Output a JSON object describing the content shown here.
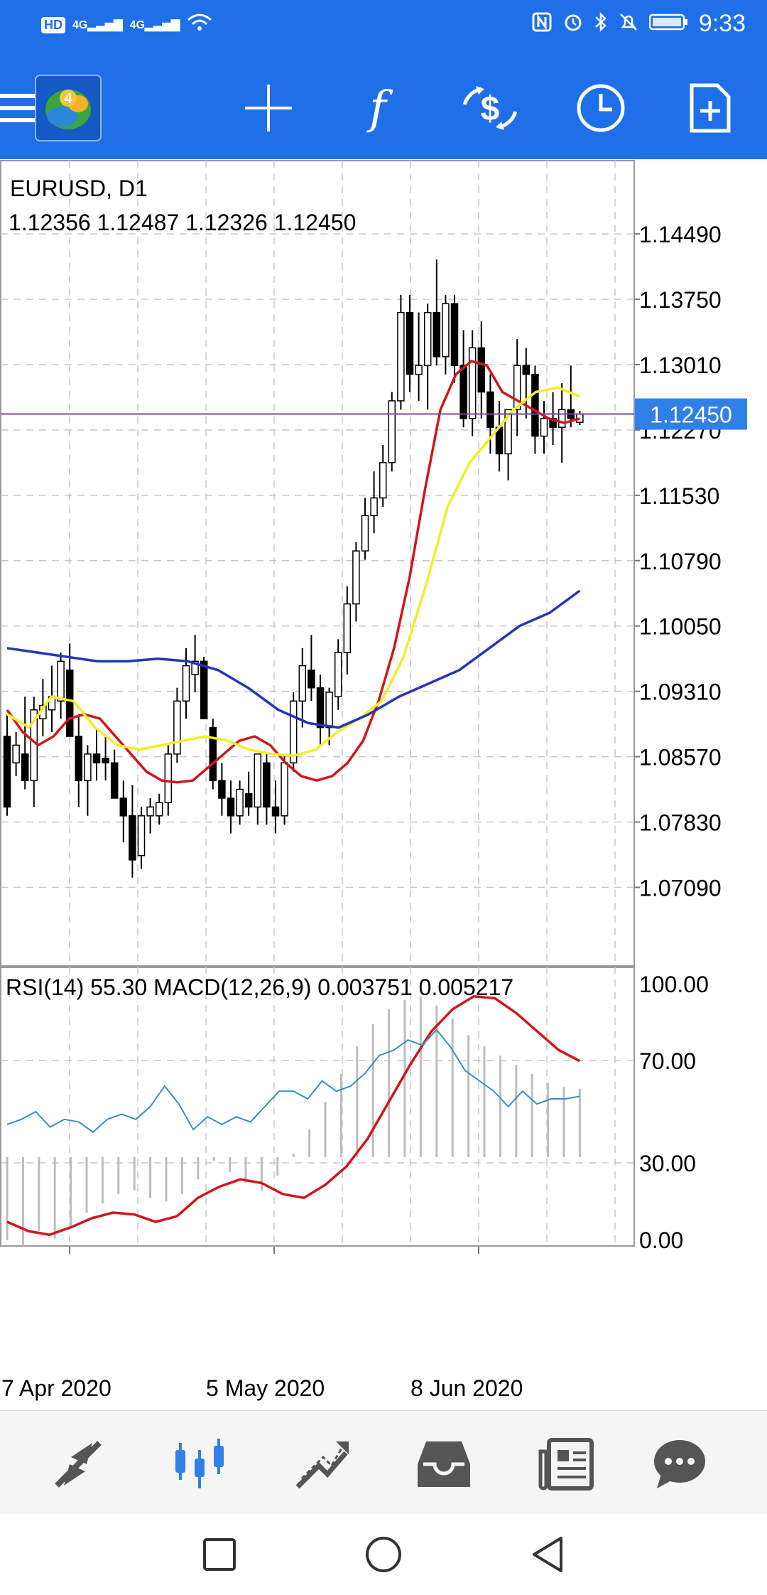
{
  "status_bar": {
    "left_badges": [
      "HD",
      "4G",
      "4G"
    ],
    "time": "9:33",
    "icons": [
      "nfc-icon",
      "alarm-icon",
      "bluetooth-icon",
      "mute-icon",
      "battery-icon"
    ]
  },
  "toolbar": {
    "app_icon": "metatrader-4-logo",
    "app_logo_text": "4",
    "buttons": [
      "menu-icon",
      "crosshair-icon",
      "indicators-icon",
      "trade-icon",
      "timeframe-icon",
      "template-icon"
    ],
    "function_glyph": "f"
  },
  "chart": {
    "symbol_label": "EURUSD, D1",
    "ohlc_label": "1.12356 1.12487 1.12326 1.12450",
    "current_price": "1.12450",
    "indicator_label": "RSI(14) 55.30 MACD(12,26,9) 0.003751 0.005217",
    "colors": {
      "bull": "#ffffff",
      "bear": "#000000",
      "ma_fast": "#d0161b",
      "ma_mid": "#f0f022",
      "ma_slow": "#2634b8",
      "rsi": "#3b8fc2",
      "macd_signal": "#d0161b",
      "macd_hist": "#b8b8b8",
      "price_line": "#7b4a8f",
      "price_badge": "#2f80e8"
    }
  },
  "chart_data": {
    "type": "candlestick",
    "title": "EURUSD, D1",
    "price_ticks": [
      "1.14490",
      "1.13750",
      "1.13010",
      "1.12270",
      "1.11530",
      "1.10790",
      "1.10050",
      "1.09310",
      "1.08570",
      "1.07830",
      "1.07090"
    ],
    "ylim": [
      1.062,
      1.1532
    ],
    "x_labels": [
      "7 Apr 2020",
      "5 May 2020",
      "8 Jun 2020"
    ],
    "last_close": 1.1245,
    "candles": [
      [
        1.088,
        1.0905,
        1.079,
        1.08
      ],
      [
        1.085,
        1.0885,
        1.0835,
        1.087
      ],
      [
        1.086,
        1.0925,
        1.082,
        1.083
      ],
      [
        1.083,
        1.0925,
        1.08,
        1.091
      ],
      [
        1.09,
        1.0945,
        1.088,
        1.0915
      ],
      [
        1.091,
        1.096,
        1.0885,
        1.0925
      ],
      [
        1.092,
        1.0975,
        1.09,
        1.0965
      ],
      [
        1.0955,
        1.0985,
        1.088,
        1.088
      ],
      [
        1.088,
        1.0905,
        1.08,
        1.083
      ],
      [
        1.083,
        1.087,
        1.079,
        1.086
      ],
      [
        1.086,
        1.089,
        1.083,
        1.085
      ],
      [
        1.0855,
        1.088,
        1.083,
        1.085
      ],
      [
        1.085,
        1.0865,
        1.081,
        1.081
      ],
      [
        1.081,
        1.083,
        1.076,
        1.079
      ],
      [
        1.079,
        1.0825,
        1.072,
        1.074
      ],
      [
        1.0745,
        1.08,
        1.073,
        1.079
      ],
      [
        1.079,
        1.081,
        1.077,
        1.08
      ],
      [
        1.079,
        1.0815,
        1.078,
        1.0805
      ],
      [
        1.0805,
        1.087,
        1.079,
        1.086
      ],
      [
        1.086,
        1.0935,
        1.085,
        1.092
      ],
      [
        1.092,
        1.098,
        1.09,
        1.096
      ],
      [
        1.095,
        1.0995,
        1.093,
        1.0965
      ],
      [
        1.0965,
        1.097,
        1.09,
        1.09
      ],
      [
        1.089,
        1.09,
        1.082,
        1.083
      ],
      [
        1.083,
        1.085,
        1.079,
        1.081
      ],
      [
        1.081,
        1.083,
        1.077,
        1.079
      ],
      [
        1.079,
        1.083,
        1.078,
        1.082
      ],
      [
        1.0815,
        1.084,
        1.079,
        1.08
      ],
      [
        1.08,
        1.086,
        1.078,
        1.086
      ],
      [
        1.085,
        1.086,
        1.078,
        1.08
      ],
      [
        1.08,
        1.083,
        1.077,
        1.079
      ],
      [
        1.079,
        1.086,
        1.078,
        1.085
      ],
      [
        1.085,
        1.093,
        1.084,
        1.092
      ],
      [
        1.092,
        1.098,
        1.089,
        1.096
      ],
      [
        1.0955,
        1.0995,
        1.092,
        1.0935
      ],
      [
        1.0935,
        1.095,
        1.087,
        1.089
      ],
      [
        1.089,
        1.0935,
        1.087,
        1.093
      ],
      [
        1.0925,
        1.099,
        1.091,
        1.0975
      ],
      [
        1.0975,
        1.105,
        1.095,
        1.103
      ],
      [
        1.103,
        1.11,
        1.101,
        1.109
      ],
      [
        1.109,
        1.115,
        1.108,
        1.113
      ],
      [
        1.113,
        1.118,
        1.111,
        1.115
      ],
      [
        1.115,
        1.121,
        1.114,
        1.119
      ],
      [
        1.119,
        1.127,
        1.118,
        1.126
      ],
      [
        1.126,
        1.138,
        1.125,
        1.136
      ],
      [
        1.136,
        1.138,
        1.127,
        1.129
      ],
      [
        1.129,
        1.136,
        1.126,
        1.13
      ],
      [
        1.13,
        1.137,
        1.125,
        1.136
      ],
      [
        1.136,
        1.142,
        1.13,
        1.131
      ],
      [
        1.131,
        1.138,
        1.129,
        1.137
      ],
      [
        1.137,
        1.138,
        1.128,
        1.13
      ],
      [
        1.13,
        1.134,
        1.123,
        1.124
      ],
      [
        1.124,
        1.134,
        1.122,
        1.132
      ],
      [
        1.132,
        1.135,
        1.124,
        1.127
      ],
      [
        1.127,
        1.129,
        1.12,
        1.123
      ],
      [
        1.123,
        1.126,
        1.118,
        1.12
      ],
      [
        1.12,
        1.125,
        1.117,
        1.125
      ],
      [
        1.125,
        1.133,
        1.122,
        1.13
      ],
      [
        1.13,
        1.132,
        1.124,
        1.129
      ],
      [
        1.129,
        1.13,
        1.12,
        1.122
      ],
      [
        1.122,
        1.126,
        1.12,
        1.124
      ],
      [
        1.124,
        1.127,
        1.121,
        1.123
      ],
      [
        1.123,
        1.128,
        1.119,
        1.125
      ],
      [
        1.125,
        1.13,
        1.123,
        1.124
      ],
      [
        1.12356,
        1.12487,
        1.12326,
        1.1245
      ]
    ],
    "series": [
      {
        "name": "",
        "color": "#d0161b",
        "values": [
          1.091,
          1.0885,
          1.087,
          1.088,
          1.09,
          1.0905,
          1.09,
          1.088,
          1.086,
          1.084,
          1.083,
          1.0828,
          1.083,
          1.0845,
          1.086,
          1.0875,
          1.088,
          1.087,
          1.085,
          1.0835,
          1.083,
          1.0835,
          1.085,
          1.0875,
          1.092,
          1.098,
          1.106,
          1.116,
          1.125,
          1.129,
          1.1305,
          1.13,
          1.127,
          1.126,
          1.125,
          1.124,
          1.1235,
          1.124
        ]
      },
      {
        "name": "",
        "color": "#f0f022",
        "values": [
          1.0905,
          1.089,
          1.0925,
          1.092,
          1.089,
          1.087,
          1.0865,
          1.087,
          1.0875,
          1.088,
          1.0875,
          1.0865,
          1.086,
          1.0858,
          1.0865,
          1.0885,
          1.09,
          1.092,
          1.097,
          1.105,
          1.114,
          1.119,
          1.122,
          1.125,
          1.127,
          1.1275,
          1.1265
        ]
      },
      {
        "name": "",
        "color": "#2634b8",
        "values": [
          1.098,
          1.0975,
          1.097,
          1.0965,
          1.0965,
          1.0968,
          1.0965,
          1.0955,
          1.0935,
          1.091,
          1.0895,
          1.089,
          1.0905,
          1.0925,
          1.094,
          1.0955,
          1.098,
          1.1005,
          1.102,
          1.1045
        ]
      }
    ],
    "indicator": {
      "rsi_ticks": [
        "100.00",
        "70.00",
        "30.00",
        "0.00"
      ],
      "rsi": [
        45,
        47,
        50,
        44,
        47,
        46,
        42,
        47,
        49,
        47,
        52,
        60,
        53,
        43,
        48,
        45,
        48,
        46,
        52,
        58,
        58,
        55,
        62,
        58,
        60,
        65,
        72,
        74,
        78,
        76,
        82,
        75,
        66,
        62,
        58,
        52,
        58,
        53,
        55,
        55,
        56
      ],
      "macd_hist": [
        -0.0045,
        -0.0048,
        -0.004,
        -0.0044,
        -0.0038,
        -0.003,
        -0.0025,
        -0.002,
        -0.0018,
        -0.0022,
        -0.0024,
        -0.002,
        -0.0012,
        -0.0002,
        -0.0008,
        -0.0014,
        -0.0018,
        -0.001,
        0.0002,
        0.0015,
        0.003,
        0.0045,
        0.006,
        0.0072,
        0.008,
        0.0085,
        0.0087,
        0.0082,
        0.0075,
        0.0066,
        0.006,
        0.0055,
        0.005,
        0.0045,
        0.004,
        0.0038,
        0.0037
      ],
      "macd_signal": [
        -0.0035,
        -0.004,
        -0.0042,
        -0.0038,
        -0.0033,
        -0.003,
        -0.0031,
        -0.0035,
        -0.0032,
        -0.0022,
        -0.0016,
        -0.0012,
        -0.0014,
        -0.002,
        -0.0022,
        -0.0015,
        -0.0005,
        0.001,
        0.003,
        0.005,
        0.0068,
        0.008,
        0.0087,
        0.0086,
        0.0078,
        0.0068,
        0.0058,
        0.0052
      ]
    }
  },
  "bottom_nav": {
    "items": [
      "quotes-icon",
      "chart-icon",
      "trade-icon",
      "history-icon",
      "news-icon",
      "chat-icon"
    ]
  },
  "system_nav": {
    "items": [
      "recents-icon",
      "home-icon",
      "back-icon"
    ]
  }
}
